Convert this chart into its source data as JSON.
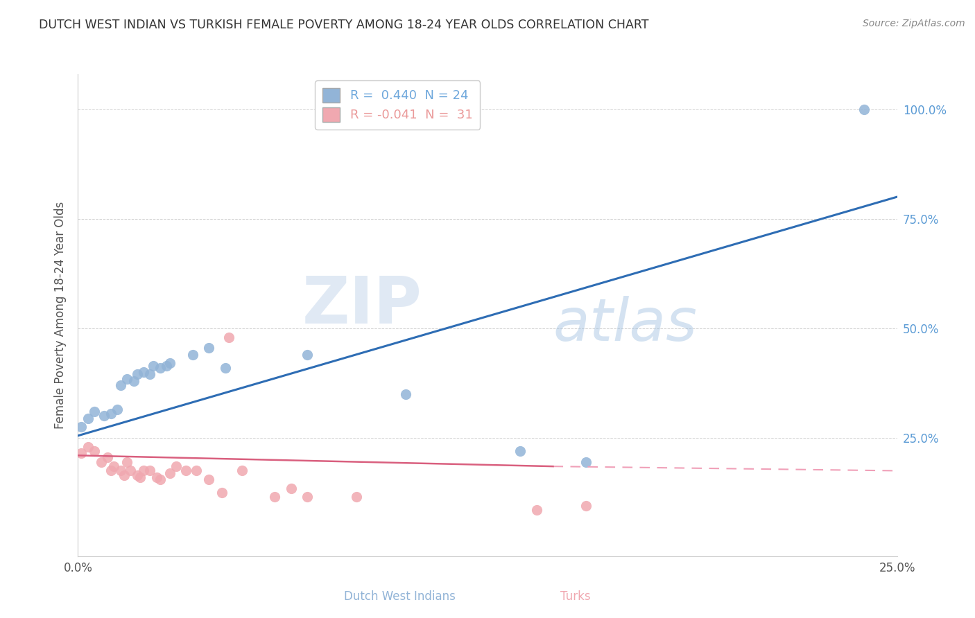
{
  "title": "DUTCH WEST INDIAN VS TURKISH FEMALE POVERTY AMONG 18-24 YEAR OLDS CORRELATION CHART",
  "source": "Source: ZipAtlas.com",
  "ylabel": "Female Poverty Among 18-24 Year Olds",
  "xlim": [
    0.0,
    0.25
  ],
  "ylim": [
    -0.02,
    1.08
  ],
  "legend_entries": [
    {
      "label": "R =  0.440  N = 24",
      "color": "#6fa8dc"
    },
    {
      "label": "R = -0.041  N =  31",
      "color": "#ea9999"
    }
  ],
  "blue_scatter": [
    [
      0.001,
      0.275
    ],
    [
      0.003,
      0.295
    ],
    [
      0.005,
      0.31
    ],
    [
      0.008,
      0.3
    ],
    [
      0.01,
      0.305
    ],
    [
      0.012,
      0.315
    ],
    [
      0.013,
      0.37
    ],
    [
      0.015,
      0.385
    ],
    [
      0.017,
      0.38
    ],
    [
      0.018,
      0.395
    ],
    [
      0.02,
      0.4
    ],
    [
      0.022,
      0.395
    ],
    [
      0.023,
      0.415
    ],
    [
      0.025,
      0.41
    ],
    [
      0.027,
      0.415
    ],
    [
      0.028,
      0.42
    ],
    [
      0.035,
      0.44
    ],
    [
      0.04,
      0.455
    ],
    [
      0.045,
      0.41
    ],
    [
      0.07,
      0.44
    ],
    [
      0.1,
      0.35
    ],
    [
      0.135,
      0.22
    ],
    [
      0.155,
      0.195
    ],
    [
      0.24,
      1.0
    ]
  ],
  "pink_scatter": [
    [
      0.001,
      0.215
    ],
    [
      0.003,
      0.23
    ],
    [
      0.005,
      0.22
    ],
    [
      0.007,
      0.195
    ],
    [
      0.009,
      0.205
    ],
    [
      0.01,
      0.175
    ],
    [
      0.011,
      0.185
    ],
    [
      0.013,
      0.175
    ],
    [
      0.014,
      0.165
    ],
    [
      0.015,
      0.195
    ],
    [
      0.016,
      0.175
    ],
    [
      0.018,
      0.165
    ],
    [
      0.019,
      0.16
    ],
    [
      0.02,
      0.175
    ],
    [
      0.022,
      0.175
    ],
    [
      0.024,
      0.16
    ],
    [
      0.025,
      0.155
    ],
    [
      0.028,
      0.17
    ],
    [
      0.03,
      0.185
    ],
    [
      0.033,
      0.175
    ],
    [
      0.036,
      0.175
    ],
    [
      0.04,
      0.155
    ],
    [
      0.044,
      0.125
    ],
    [
      0.046,
      0.48
    ],
    [
      0.05,
      0.175
    ],
    [
      0.06,
      0.115
    ],
    [
      0.065,
      0.135
    ],
    [
      0.07,
      0.115
    ],
    [
      0.085,
      0.115
    ],
    [
      0.14,
      0.085
    ],
    [
      0.155,
      0.095
    ]
  ],
  "blue_line_full": [
    [
      0.0,
      0.255
    ],
    [
      0.25,
      0.8
    ]
  ],
  "pink_line_solid": [
    [
      0.0,
      0.21
    ],
    [
      0.145,
      0.185
    ]
  ],
  "pink_line_dashed": [
    [
      0.145,
      0.185
    ],
    [
      0.25,
      0.175
    ]
  ],
  "yticks": [
    0.25,
    0.5,
    0.75,
    1.0
  ],
  "ytick_labels": [
    "25.0%",
    "50.0%",
    "75.0%",
    "100.0%"
  ],
  "xticks": [
    0.0,
    0.25
  ],
  "xtick_labels": [
    "0.0%",
    "25.0%"
  ],
  "watermark_zip": "ZIP",
  "watermark_atlas": "atlas",
  "background_color": "#ffffff",
  "scatter_size": 120,
  "blue_color": "#92b4d7",
  "pink_color": "#f0a8b0",
  "blue_line_color": "#2e6db4",
  "pink_line_color_solid": "#d95f7e",
  "pink_line_color_dashed": "#f0a0b8",
  "grid_color": "#d0d0d0",
  "ytick_color": "#5b9bd5",
  "title_color": "#333333",
  "source_color": "#888888",
  "ylabel_color": "#555555",
  "legend_label_blue": "R =  0.440  N = 24",
  "legend_label_pink": "R = -0.041  N =  31"
}
